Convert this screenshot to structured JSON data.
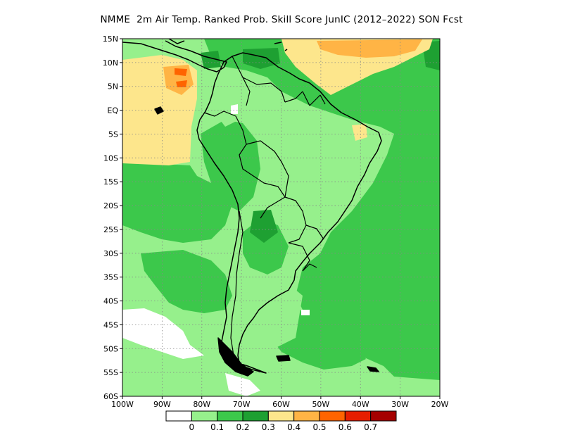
{
  "title": "NMME  2m Air Temp. Ranked Prob. Skill Score JunIC (2012–2022) SON Fcst",
  "map": {
    "lat_ticks": [
      "15N",
      "10N",
      "5N",
      "EQ",
      "5S",
      "10S",
      "15S",
      "20S",
      "25S",
      "30S",
      "35S",
      "40S",
      "45S",
      "50S",
      "55S",
      "60S"
    ],
    "lon_ticks": [
      "100W",
      "90W",
      "80W",
      "70W",
      "60W",
      "50W",
      "40W",
      "30W",
      "20W"
    ],
    "lat_range": [
      -60,
      15
    ],
    "lon_range": [
      -100,
      -20
    ],
    "grid": "dotted"
  },
  "colorbar": {
    "colors": [
      "#ffffff",
      "#96f08c",
      "#3cc84b",
      "#1ea032",
      "#fde68c",
      "#ffb445",
      "#ff6400",
      "#e61e00",
      "#a50000"
    ],
    "labels": [
      "0",
      "0.1",
      "0.2",
      "0.3",
      "0.4",
      "0.5",
      "0.6",
      "0.7"
    ]
  }
}
